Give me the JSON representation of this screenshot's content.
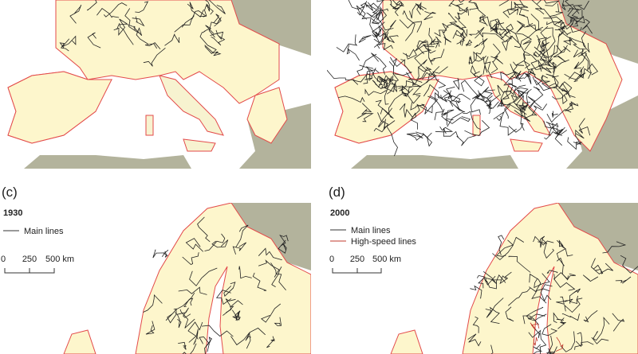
{
  "panels": [
    {
      "label": "(c)",
      "year": "1930",
      "legend": [
        "Main lines"
      ],
      "scale": [
        "0",
        "250",
        "500 km"
      ]
    },
    {
      "label": "(d)",
      "year": "2000",
      "legend": [
        "Main lines",
        "High-speed lines"
      ],
      "scale": [
        "0",
        "250",
        "500 km"
      ]
    }
  ]
}
